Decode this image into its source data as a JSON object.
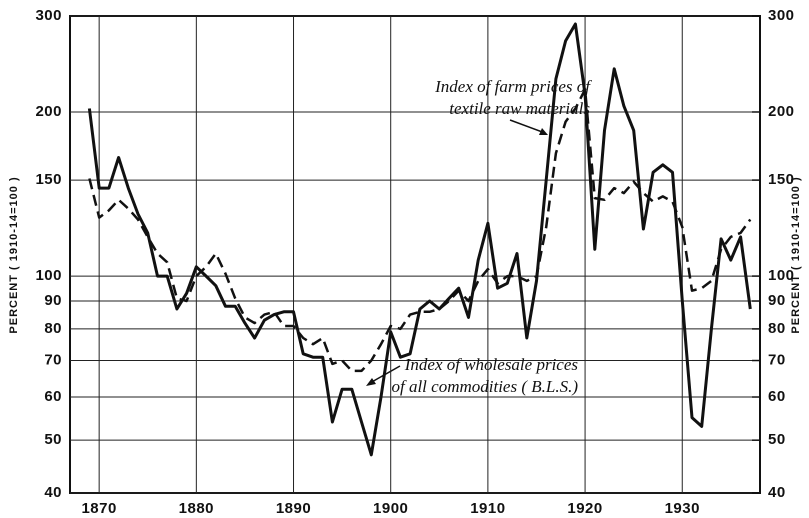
{
  "chart_data": {
    "type": "line",
    "y_label": "PERCENT ( 1910-14=100 )",
    "y2_label": "PERCENT ( 1910-14=100 )",
    "log_y": true,
    "grid": true,
    "xlim": [
      1867,
      1938
    ],
    "xticks": [
      1870,
      1880,
      1890,
      1900,
      1910,
      1920,
      1930
    ],
    "ylim": [
      40,
      300
    ],
    "yticks": [
      40,
      50,
      60,
      70,
      80,
      90,
      100,
      150,
      200,
      300
    ],
    "y2lim": [
      40,
      300
    ],
    "y2ticks": [
      40,
      50,
      60,
      70,
      80,
      90,
      100,
      150,
      200,
      300
    ],
    "x": [
      1869,
      1870,
      1871,
      1872,
      1873,
      1874,
      1875,
      1876,
      1877,
      1878,
      1879,
      1880,
      1881,
      1882,
      1883,
      1884,
      1885,
      1886,
      1887,
      1888,
      1889,
      1890,
      1891,
      1892,
      1893,
      1894,
      1895,
      1896,
      1897,
      1898,
      1899,
      1900,
      1901,
      1902,
      1903,
      1904,
      1905,
      1906,
      1907,
      1908,
      1909,
      1910,
      1911,
      1912,
      1913,
      1914,
      1915,
      1916,
      1917,
      1918,
      1919,
      1920,
      1921,
      1922,
      1923,
      1924,
      1925,
      1926,
      1927,
      1928,
      1929,
      1930,
      1931,
      1932,
      1933,
      1934,
      1935,
      1936,
      1937
    ],
    "series": [
      {
        "name": "Index of farm prices of textile raw materials",
        "color": "#111111",
        "dashed": false,
        "values": [
          203,
          145,
          145,
          165,
          145,
          130,
          120,
          100,
          100,
          87,
          93,
          104,
          100,
          96,
          88,
          88,
          82,
          77,
          83,
          85,
          86,
          86,
          72,
          71,
          71,
          54,
          62,
          62,
          54,
          47,
          60,
          79,
          71,
          72,
          87,
          90,
          87,
          91,
          95,
          84,
          107,
          125,
          95,
          97,
          110,
          77,
          98,
          150,
          230,
          270,
          290,
          215,
          112,
          185,
          240,
          205,
          185,
          122,
          155,
          160,
          155,
          90,
          55,
          53,
          80,
          117,
          107,
          118,
          87
        ]
      },
      {
        "name": "Index of wholesale prices of all commodities ( B.L.S.)",
        "color": "#111111",
        "dashed": true,
        "values": [
          151,
          128,
          132,
          138,
          133,
          127,
          118,
          110,
          106,
          91,
          90,
          100,
          104,
          110,
          101,
          91,
          84,
          82,
          85,
          86,
          81,
          81,
          77,
          75,
          77,
          69,
          70,
          67,
          67,
          70,
          75,
          81,
          80,
          85,
          86,
          86,
          87,
          90,
          94,
          90,
          98,
          103,
          97,
          100,
          100,
          98,
          100,
          123,
          168,
          192,
          203,
          220,
          139,
          138,
          145,
          142,
          149,
          142,
          137,
          140,
          137,
          123,
          94,
          95,
          98,
          112,
          118,
          120,
          127
        ]
      }
    ],
    "annotations": [
      {
        "lines": [
          "Index of farm prices of",
          "textile raw materials"
        ]
      },
      {
        "lines": [
          "Index of wholesale prices",
          "of all commodities ( B.L.S.)"
        ]
      }
    ]
  }
}
